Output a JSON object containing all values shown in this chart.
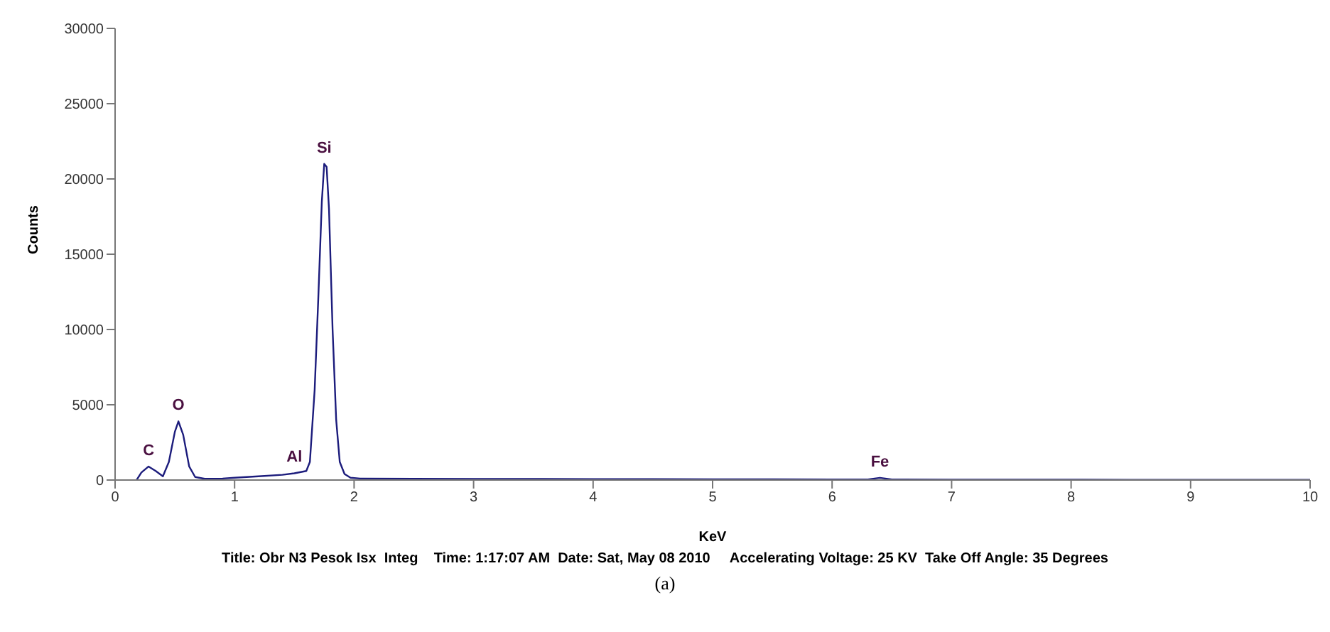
{
  "chart_data": {
    "type": "line",
    "xlabel": "KeV",
    "ylabel": "Counts",
    "x": [
      0.18,
      0.22,
      0.28,
      0.34,
      0.4,
      0.45,
      0.5,
      0.53,
      0.57,
      0.62,
      0.67,
      0.75,
      0.9,
      1.0,
      1.2,
      1.4,
      1.5,
      1.6,
      1.63,
      1.67,
      1.7,
      1.73,
      1.75,
      1.77,
      1.79,
      1.82,
      1.85,
      1.88,
      1.92,
      1.97,
      2.05,
      2.5,
      3,
      3.5,
      4,
      4.5,
      5,
      5.5,
      6,
      6.3,
      6.4,
      6.5,
      7,
      7.5,
      8,
      8.5,
      9,
      9.5,
      10
    ],
    "series": [
      {
        "color": "#1c1c7c",
        "values": [
          0,
          500,
          900,
          600,
          250,
          1200,
          3200,
          3900,
          3000,
          900,
          200,
          80,
          100,
          150,
          250,
          350,
          450,
          600,
          1200,
          6000,
          12000,
          18500,
          21000,
          20800,
          18000,
          10000,
          4000,
          1200,
          400,
          150,
          100,
          80,
          70,
          70,
          60,
          60,
          50,
          50,
          40,
          40,
          150,
          40,
          30,
          30,
          30,
          20,
          20,
          20,
          10
        ]
      }
    ],
    "xlim": [
      0,
      10
    ],
    "xticks": [
      0,
      1,
      2,
      3,
      4,
      5,
      6,
      7,
      8,
      9,
      10
    ],
    "ylim": [
      0,
      30000
    ],
    "yticks": [
      0,
      5000,
      10000,
      15000,
      20000,
      25000,
      30000
    ],
    "grid": false,
    "legend": false,
    "marker": "none",
    "line_style": "solid",
    "annotations": [
      {
        "text": "C",
        "x": 0.28,
        "y": 900
      },
      {
        "text": "O",
        "x": 0.53,
        "y": 3900
      },
      {
        "text": "Al",
        "x": 1.5,
        "y": 450
      },
      {
        "text": "Si",
        "x": 1.75,
        "y": 21000
      },
      {
        "text": "Fe",
        "x": 6.4,
        "y": 150
      },
      "Title: Obr N3 Pesok Isx  Integ    Time: 1:17:07 AM  Date: Sat, May 08 2010     Accelerating Voltage: 25 KV  Take Off Angle: 35 Degrees",
      "(a)"
    ]
  }
}
